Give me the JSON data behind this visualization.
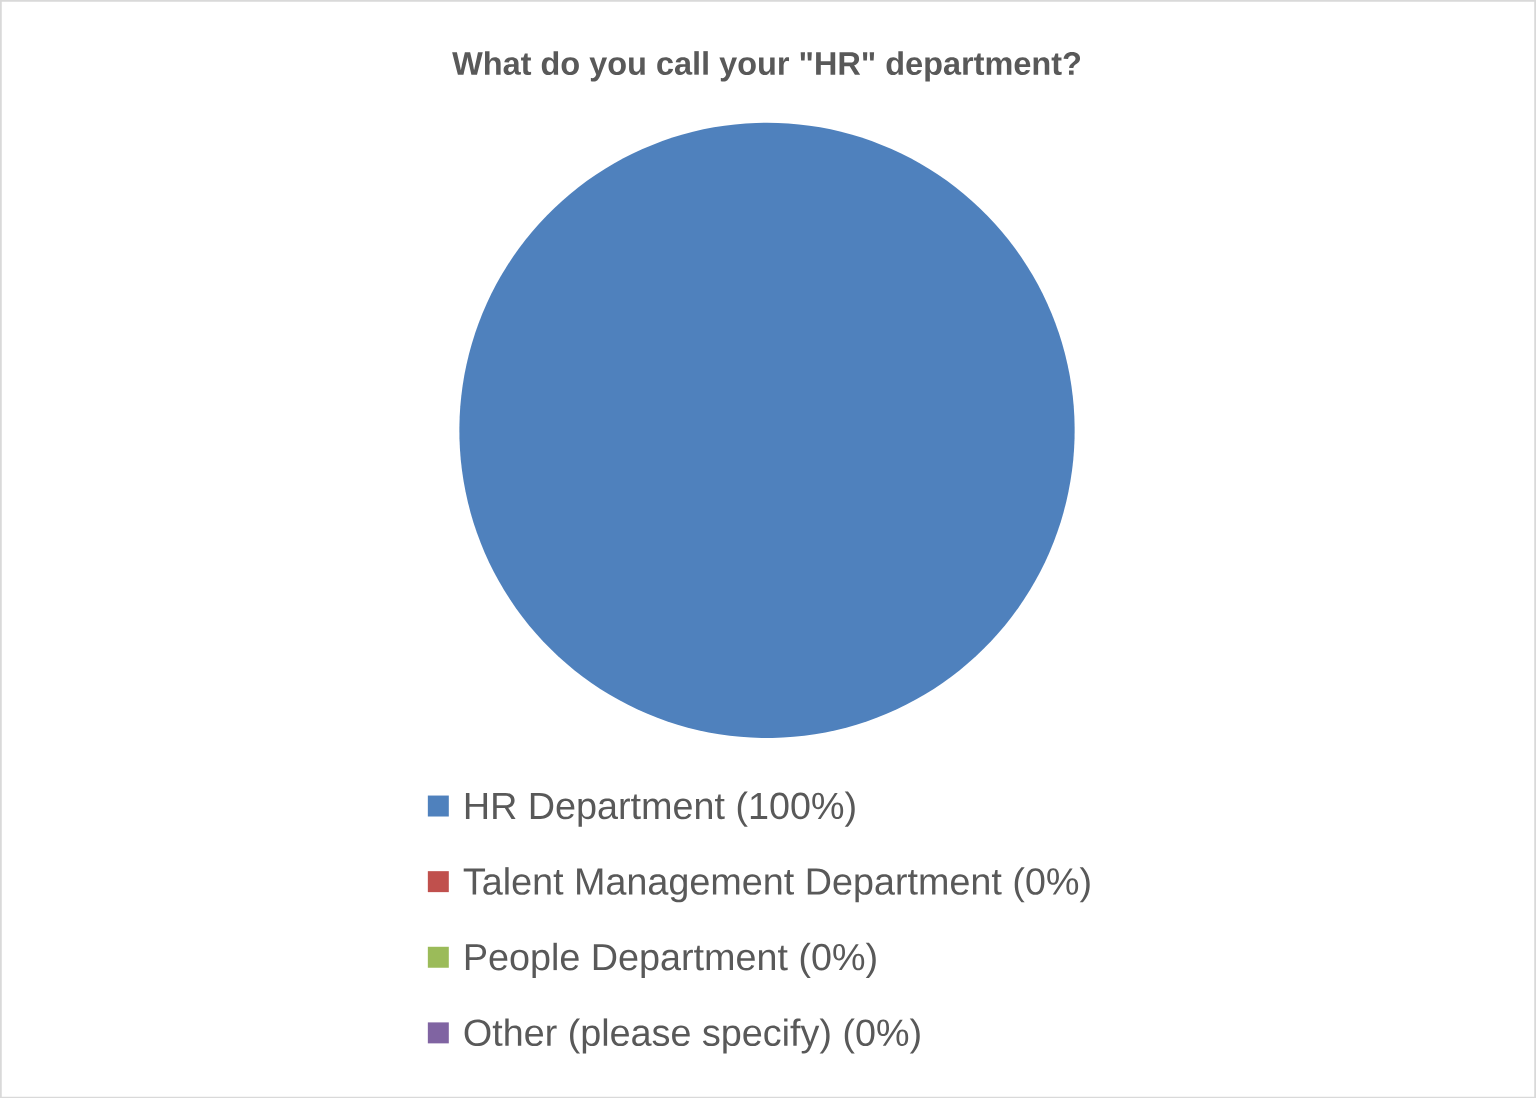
{
  "chart_data": {
    "type": "pie",
    "title": "What do you call your \"HR\" department?",
    "categories": [
      "HR Department (100%)",
      "Talent Management Department (0%)",
      "People Department (0%)",
      "Other (please specify) (0%)"
    ],
    "values": [
      100,
      0,
      0,
      0
    ],
    "colors": [
      "#4f81bd",
      "#c0504d",
      "#9bbb59",
      "#8064a2"
    ],
    "legend": "bottom"
  }
}
